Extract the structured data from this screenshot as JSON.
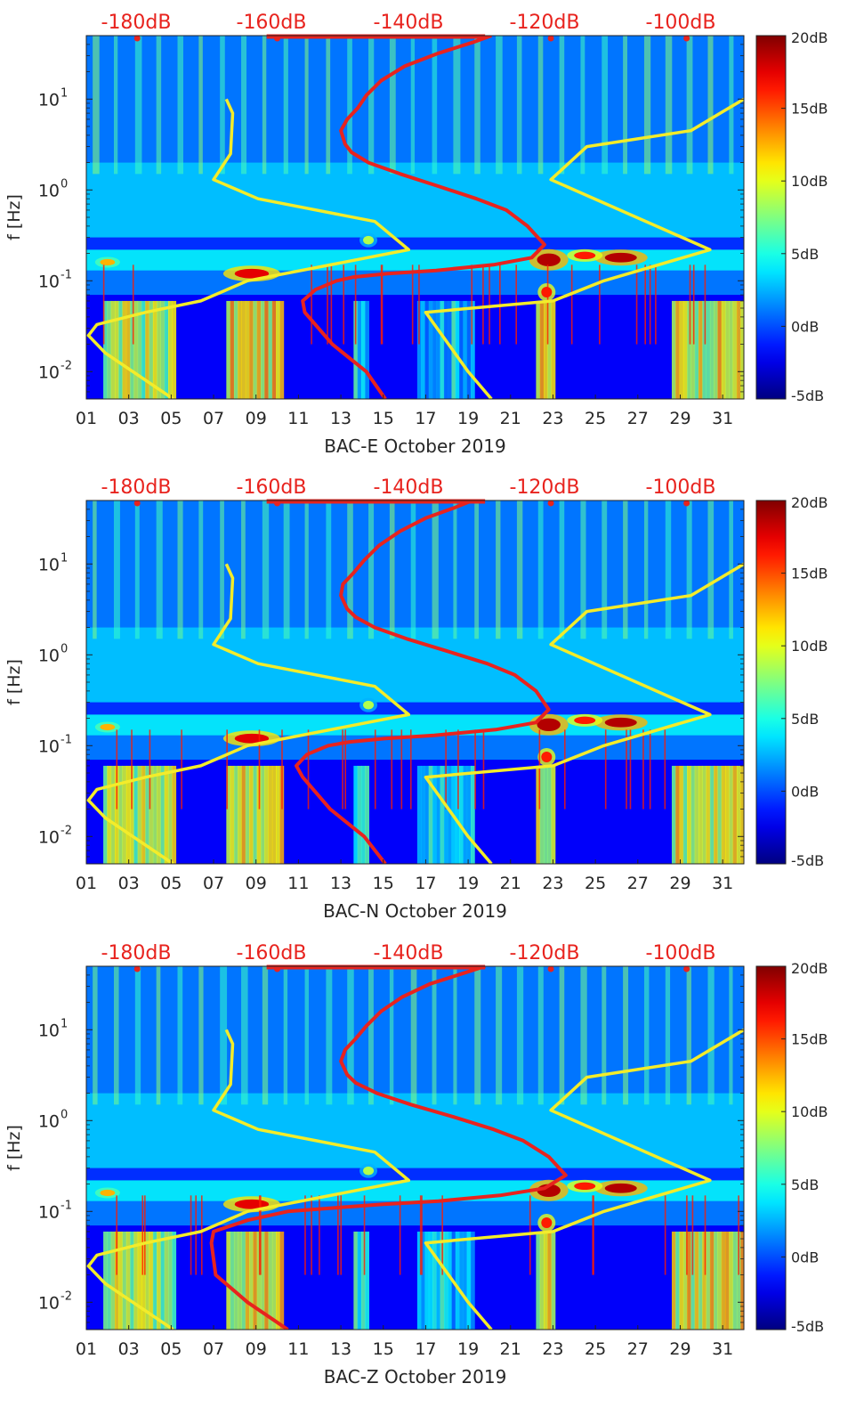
{
  "psd_scale_labels": [
    "-180dB",
    "-160dB",
    "-140dB",
    "-120dB",
    "-100dB"
  ],
  "colorbar": {
    "ticks": [
      "20dB",
      "15dB",
      "10dB",
      "5dB",
      "0dB",
      "-5dB"
    ],
    "values": [
      20,
      15,
      10,
      5,
      0,
      -5
    ],
    "range": [
      -5,
      20
    ],
    "colormap": "jet"
  },
  "colors": {
    "psd_curve": "#e8231e",
    "noise_model": "#f3ec2a",
    "scale_text": "#e8231e"
  },
  "chart_data": [
    {
      "type": "heatmap",
      "station": "BAC-E",
      "xlabel": "BAC-E October 2019",
      "ylabel": "f [Hz]",
      "yscale": "log",
      "ylim": [
        0.005,
        50
      ],
      "xlim": [
        1,
        32
      ],
      "x_ticks": [
        "01",
        "03",
        "05",
        "07",
        "09",
        "11",
        "13",
        "15",
        "17",
        "19",
        "21",
        "23",
        "25",
        "27",
        "29",
        "31"
      ],
      "y_ticks": [
        {
          "value": 10,
          "mantissa": "10",
          "exp": "1"
        },
        {
          "value": 1,
          "mantissa": "10",
          "exp": "0"
        },
        {
          "value": 0.1,
          "mantissa": "10",
          "exp": "-1"
        },
        {
          "value": 0.01,
          "mantissa": "10",
          "exp": "-2"
        }
      ],
      "series": [
        {
          "x": [
            20.1,
            19.2,
            17.6,
            16.0,
            14.9,
            14.2,
            13.8,
            13.3,
            13.0,
            13.2,
            13.5,
            14.3,
            15.8,
            17.6,
            19.4,
            20.8,
            21.8,
            22.6,
            22.0,
            20.2,
            17.5,
            15.2,
            13.6,
            12.8,
            11.8,
            11.2,
            11.3,
            12.6,
            14.2,
            15.1
          ],
          "y": [
            50,
            42,
            32,
            23,
            16,
            11,
            8,
            6,
            4.5,
            3.2,
            2.6,
            2.0,
            1.5,
            1.1,
            0.8,
            0.6,
            0.4,
            0.25,
            0.18,
            0.15,
            0.13,
            0.12,
            0.11,
            0.1,
            0.08,
            0.06,
            0.045,
            0.02,
            0.01,
            0.005
          ]
        },
        {
          "x": [
            5.1,
            1.9,
            1.1,
            1.5,
            3.8,
            6.4,
            8.6,
            16.2,
            14.6,
            9.1,
            7.0,
            7.8,
            7.9,
            7.6
          ],
          "y": [
            0.005,
            0.016,
            0.025,
            0.033,
            0.045,
            0.06,
            0.1,
            0.22,
            0.45,
            0.8,
            1.3,
            2.5,
            7,
            10
          ]
        },
        {
          "x": [
            20.1,
            19.0,
            17.0,
            23.0,
            25.4,
            30.4,
            22.9,
            24.6,
            29.5,
            32.0
          ],
          "y": [
            0.005,
            0.01,
            0.045,
            0.06,
            0.1,
            0.22,
            1.3,
            3,
            4.5,
            10
          ]
        }
      ]
    },
    {
      "type": "heatmap",
      "station": "BAC-N",
      "xlabel": "BAC-N October 2019",
      "ylabel": "f [Hz]",
      "yscale": "log",
      "ylim": [
        0.005,
        50
      ],
      "xlim": [
        1,
        32
      ],
      "x_ticks": [
        "01",
        "03",
        "05",
        "07",
        "09",
        "11",
        "13",
        "15",
        "17",
        "19",
        "21",
        "23",
        "25",
        "27",
        "29",
        "31"
      ],
      "y_ticks": [
        {
          "value": 10,
          "mantissa": "10",
          "exp": "1"
        },
        {
          "value": 1,
          "mantissa": "10",
          "exp": "0"
        },
        {
          "value": 0.1,
          "mantissa": "10",
          "exp": "-1"
        },
        {
          "value": 0.01,
          "mantissa": "10",
          "exp": "-2"
        }
      ],
      "series": [
        {
          "x": [
            19.2,
            18.4,
            17.0,
            15.8,
            14.8,
            14.1,
            13.6,
            13.1,
            13.0,
            13.3,
            13.7,
            14.6,
            16.1,
            18.0,
            19.9,
            21.2,
            22.2,
            22.8,
            22.2,
            20.3,
            17.4,
            15.1,
            13.4,
            12.4,
            11.4,
            10.9,
            11.2,
            12.5,
            14.1,
            15.1
          ],
          "y": [
            50,
            42,
            32,
            23,
            16,
            11,
            8,
            6,
            4.5,
            3.2,
            2.6,
            2.0,
            1.5,
            1.1,
            0.8,
            0.6,
            0.4,
            0.25,
            0.18,
            0.15,
            0.13,
            0.12,
            0.11,
            0.1,
            0.08,
            0.06,
            0.045,
            0.02,
            0.01,
            0.005
          ]
        },
        {
          "x": [
            5.1,
            1.9,
            1.1,
            1.5,
            3.8,
            6.4,
            8.6,
            16.2,
            14.6,
            9.1,
            7.0,
            7.8,
            7.9,
            7.6
          ],
          "y": [
            0.005,
            0.016,
            0.025,
            0.033,
            0.045,
            0.06,
            0.1,
            0.22,
            0.45,
            0.8,
            1.3,
            2.5,
            7,
            10
          ]
        },
        {
          "x": [
            20.1,
            19.0,
            17.0,
            23.0,
            25.4,
            30.4,
            22.9,
            24.6,
            29.5,
            32.0
          ],
          "y": [
            0.005,
            0.01,
            0.045,
            0.06,
            0.1,
            0.22,
            1.3,
            3,
            4.5,
            10
          ]
        }
      ]
    },
    {
      "type": "heatmap",
      "station": "BAC-Z",
      "xlabel": "BAC-Z October 2019",
      "ylabel": "f [Hz]",
      "yscale": "log",
      "ylim": [
        0.005,
        50
      ],
      "xlim": [
        1,
        32
      ],
      "x_ticks": [
        "01",
        "03",
        "05",
        "07",
        "09",
        "11",
        "13",
        "15",
        "17",
        "19",
        "21",
        "23",
        "25",
        "27",
        "29",
        "31"
      ],
      "y_ticks": [
        {
          "value": 10,
          "mantissa": "10",
          "exp": "1"
        },
        {
          "value": 1,
          "mantissa": "10",
          "exp": "0"
        },
        {
          "value": 0.1,
          "mantissa": "10",
          "exp": "-1"
        },
        {
          "value": 0.01,
          "mantissa": "10",
          "exp": "-2"
        }
      ],
      "series": [
        {
          "x": [
            19.8,
            18.8,
            17.2,
            15.9,
            14.9,
            14.2,
            13.7,
            13.2,
            13.0,
            13.3,
            13.7,
            14.7,
            16.3,
            18.3,
            20.2,
            21.6,
            22.8,
            23.6,
            22.6,
            20.5,
            17.6,
            15.0,
            12.8,
            10.5,
            8.6,
            7.0,
            6.9,
            7.1,
            8.6,
            10.5
          ],
          "y": [
            50,
            42,
            32,
            23,
            16,
            11,
            8,
            6,
            4.5,
            3.2,
            2.6,
            2.0,
            1.5,
            1.1,
            0.8,
            0.6,
            0.4,
            0.25,
            0.18,
            0.15,
            0.13,
            0.12,
            0.11,
            0.1,
            0.08,
            0.06,
            0.045,
            0.02,
            0.01,
            0.005
          ]
        },
        {
          "x": [
            5.1,
            1.9,
            1.1,
            1.5,
            3.8,
            6.4,
            8.6,
            16.2,
            14.6,
            9.1,
            7.0,
            7.8,
            7.9,
            7.6
          ],
          "y": [
            0.005,
            0.016,
            0.025,
            0.033,
            0.045,
            0.06,
            0.1,
            0.22,
            0.45,
            0.8,
            1.3,
            2.5,
            7,
            10
          ]
        },
        {
          "x": [
            20.1,
            19.0,
            17.0,
            23.0,
            25.4,
            30.4,
            22.9,
            24.6,
            29.5,
            32.0
          ],
          "y": [
            0.005,
            0.01,
            0.045,
            0.06,
            0.1,
            0.22,
            1.3,
            3,
            4.5,
            10
          ]
        }
      ]
    }
  ]
}
